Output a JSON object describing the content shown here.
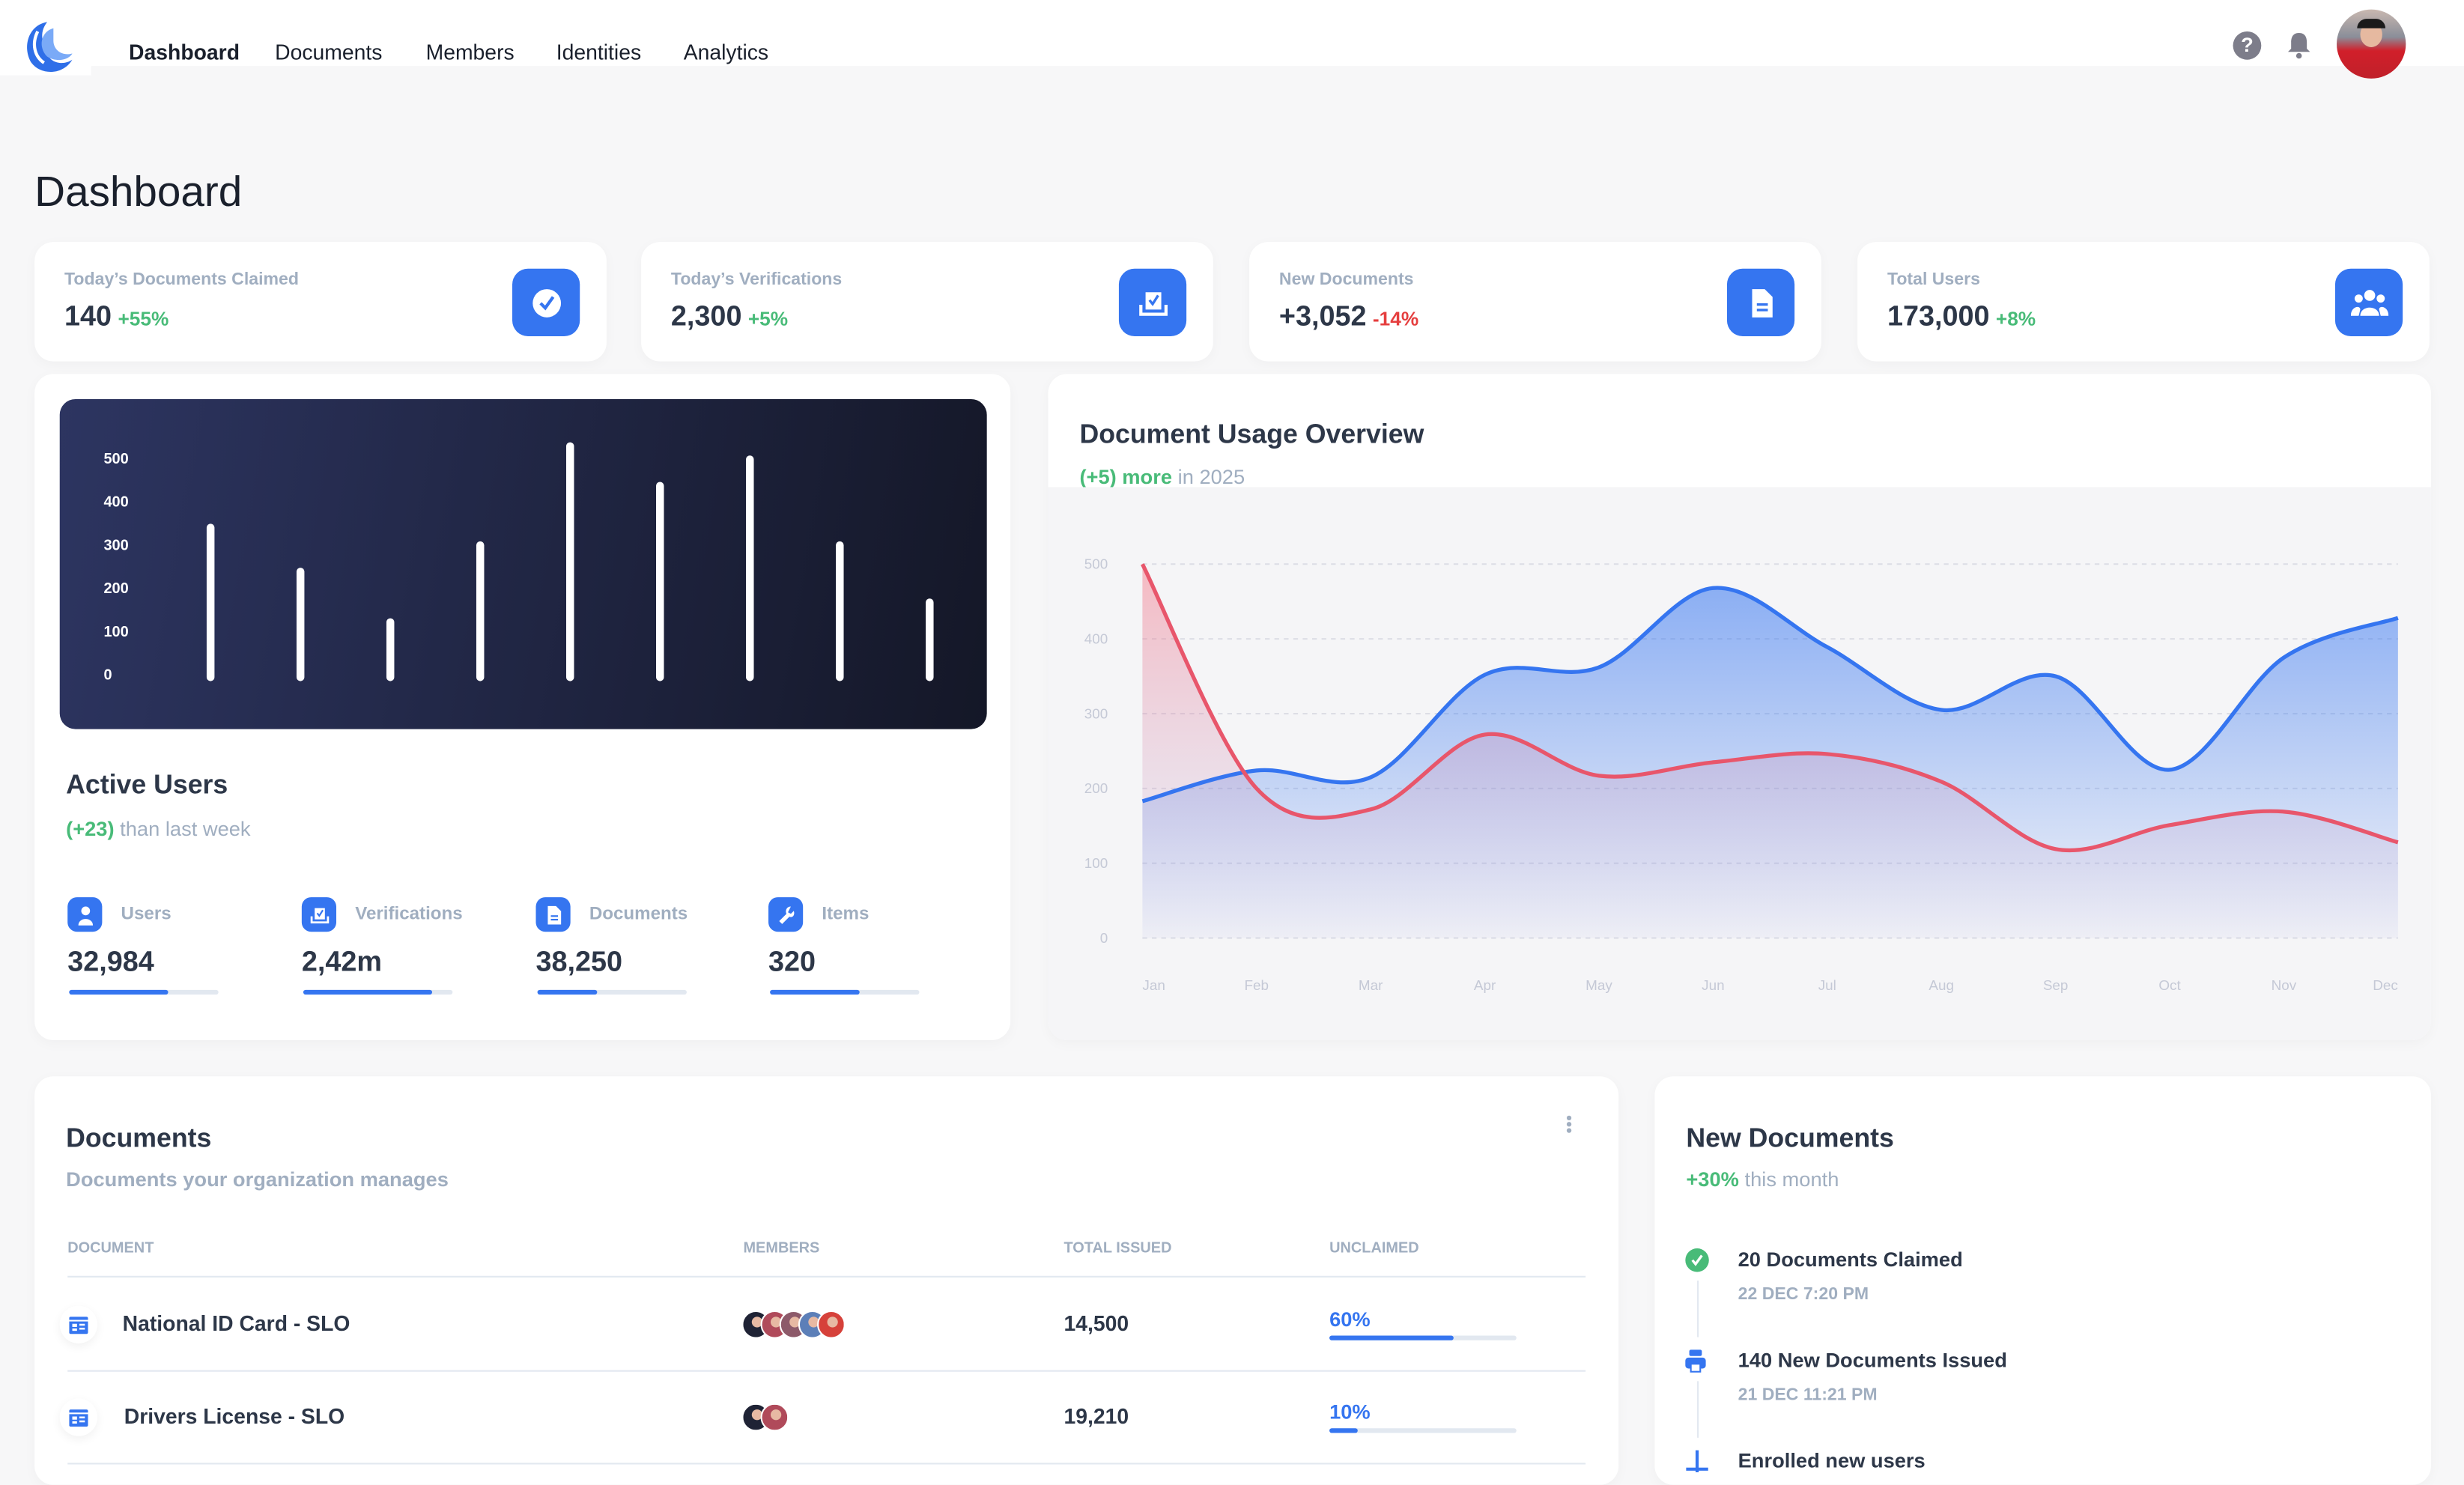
{
  "nav": {
    "items": [
      {
        "label": "Dashboard",
        "active": true
      },
      {
        "label": "Documents"
      },
      {
        "label": "Members"
      },
      {
        "label": "Identities"
      },
      {
        "label": "Analytics"
      }
    ],
    "icons": {
      "help": "question-circle-icon",
      "notifications": "bell-icon",
      "avatar": "user-avatar"
    }
  },
  "page_title": "Dashboard",
  "stats": [
    {
      "label": "Today’s Documents Claimed",
      "value": "140",
      "change": "+55%",
      "trend": "up",
      "icon": "check-circle-icon"
    },
    {
      "label": "Today’s Verifications",
      "value": "2,300",
      "change": "+5%",
      "trend": "up",
      "icon": "verification-tray-icon"
    },
    {
      "label": "New Documents",
      "value": "+3,052",
      "change": "-14%",
      "trend": "down",
      "icon": "document-icon"
    },
    {
      "label": "Total Users",
      "value": "173,000",
      "change": "+8%",
      "trend": "up",
      "icon": "users-icon"
    }
  ],
  "active_users": {
    "title": "Active Users",
    "change": "(+23)",
    "change_suffix": "than last week",
    "metrics": [
      {
        "label": "Users",
        "value": "32,984",
        "progress": 0.66,
        "icon": "user-icon"
      },
      {
        "label": "Verifications",
        "value": "2,42m",
        "progress": 0.86,
        "icon": "verification-tray-icon"
      },
      {
        "label": "Documents",
        "value": "38,250",
        "progress": 0.4,
        "icon": "document-icon"
      },
      {
        "label": "Items",
        "value": "320",
        "progress": 0.6,
        "icon": "wrench-icon"
      }
    ]
  },
  "usage": {
    "title": "Document Usage Overview",
    "change": "(+5) more",
    "suffix": "in 2025"
  },
  "chart_data": [
    {
      "type": "bar",
      "yticks": [
        "500",
        "400",
        "300",
        "200",
        "100",
        "0"
      ],
      "ylim": [
        0,
        500
      ],
      "values": [
        340,
        240,
        125,
        300,
        525,
        435,
        495,
        300,
        170
      ],
      "bar_color": "#ffffff",
      "background": [
        "#2d3561",
        "#141727"
      ]
    },
    {
      "type": "area",
      "x": [
        "Jan",
        "Feb",
        "Mar",
        "Apr",
        "May",
        "Jun",
        "Jul",
        "Aug",
        "Sep",
        "Oct",
        "Nov",
        "Dec"
      ],
      "yticks": [
        "500",
        "400",
        "300",
        "200",
        "100",
        "0"
      ],
      "ylim": [
        0,
        500
      ],
      "grid": true,
      "series": [
        {
          "color": "#3575f0",
          "values": [
            183,
            224,
            215,
            352,
            362,
            468,
            389,
            305,
            350,
            225,
            375,
            428
          ]
        },
        {
          "color": "#e8566b",
          "values": [
            500,
            200,
            172,
            272,
            217,
            235,
            246,
            209,
            119,
            151,
            169,
            128
          ]
        }
      ]
    }
  ],
  "documents": {
    "title": "Documents",
    "subtitle": "Documents your organization manages",
    "columns": [
      "DOCUMENT",
      "MEMBERS",
      "TOTAL ISSUED",
      "UNCLAIMED"
    ],
    "rows": [
      {
        "name": "National ID Card - SLO",
        "members": 5,
        "total": "14,500",
        "unclaimed": "60%",
        "unclaimed_fill": 0.66,
        "icon": "id-card-icon"
      },
      {
        "name": "Drivers License - SLO",
        "members": 2,
        "total": "19,210",
        "unclaimed": "10%",
        "unclaimed_fill": 0.15,
        "icon": "id-card-icon"
      }
    ]
  },
  "new_documents": {
    "title": "New Documents",
    "change": "+30%",
    "suffix": "this month",
    "events": [
      {
        "title": "20 Documents Claimed",
        "time": "22 DEC 7:20 PM",
        "icon": "check-circle-icon",
        "color": "#48bb78"
      },
      {
        "title": "140 New Documents Issued",
        "time": "21 DEC 11:21 PM",
        "icon": "printer-icon",
        "color": "#3575f0"
      },
      {
        "title": "Enrolled new users",
        "time": "",
        "icon": "plus-icon",
        "color": "#3575f0"
      }
    ]
  },
  "colors": {
    "accent": "#3575f0",
    "positive": "#48bb78",
    "negative": "#e53e3e",
    "text": "#2d3748",
    "muted": "#a0aec0"
  }
}
